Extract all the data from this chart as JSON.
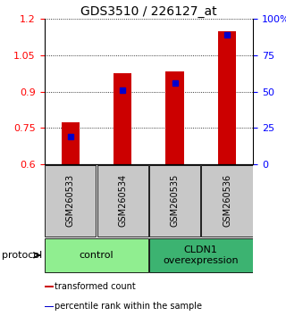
{
  "title": "GDS3510 / 226127_at",
  "samples": [
    "GSM260533",
    "GSM260534",
    "GSM260535",
    "GSM260536"
  ],
  "red_values": [
    0.775,
    0.975,
    0.985,
    1.15
  ],
  "blue_values": [
    0.715,
    0.905,
    0.935,
    1.135
  ],
  "ylim": [
    0.6,
    1.2
  ],
  "y_ticks": [
    0.6,
    0.75,
    0.9,
    1.05,
    1.2
  ],
  "y2_ticks": [
    0,
    25,
    50,
    75,
    100
  ],
  "groups": [
    {
      "label": "control",
      "samples": [
        0,
        1
      ],
      "color": "#90EE90"
    },
    {
      "label": "CLDN1\noverexpression",
      "samples": [
        2,
        3
      ],
      "color": "#3CB371"
    }
  ],
  "bar_color": "#CC0000",
  "dot_color": "#0000CC",
  "bar_width": 0.35,
  "protocol_label": "protocol",
  "legend_red": "transformed count",
  "legend_blue": "percentile rank within the sample",
  "bg_sample": "#C8C8C8",
  "title_fontsize": 10,
  "tick_fontsize": 8,
  "sample_fontsize": 7,
  "group_fontsize": 8,
  "legend_fontsize": 7
}
